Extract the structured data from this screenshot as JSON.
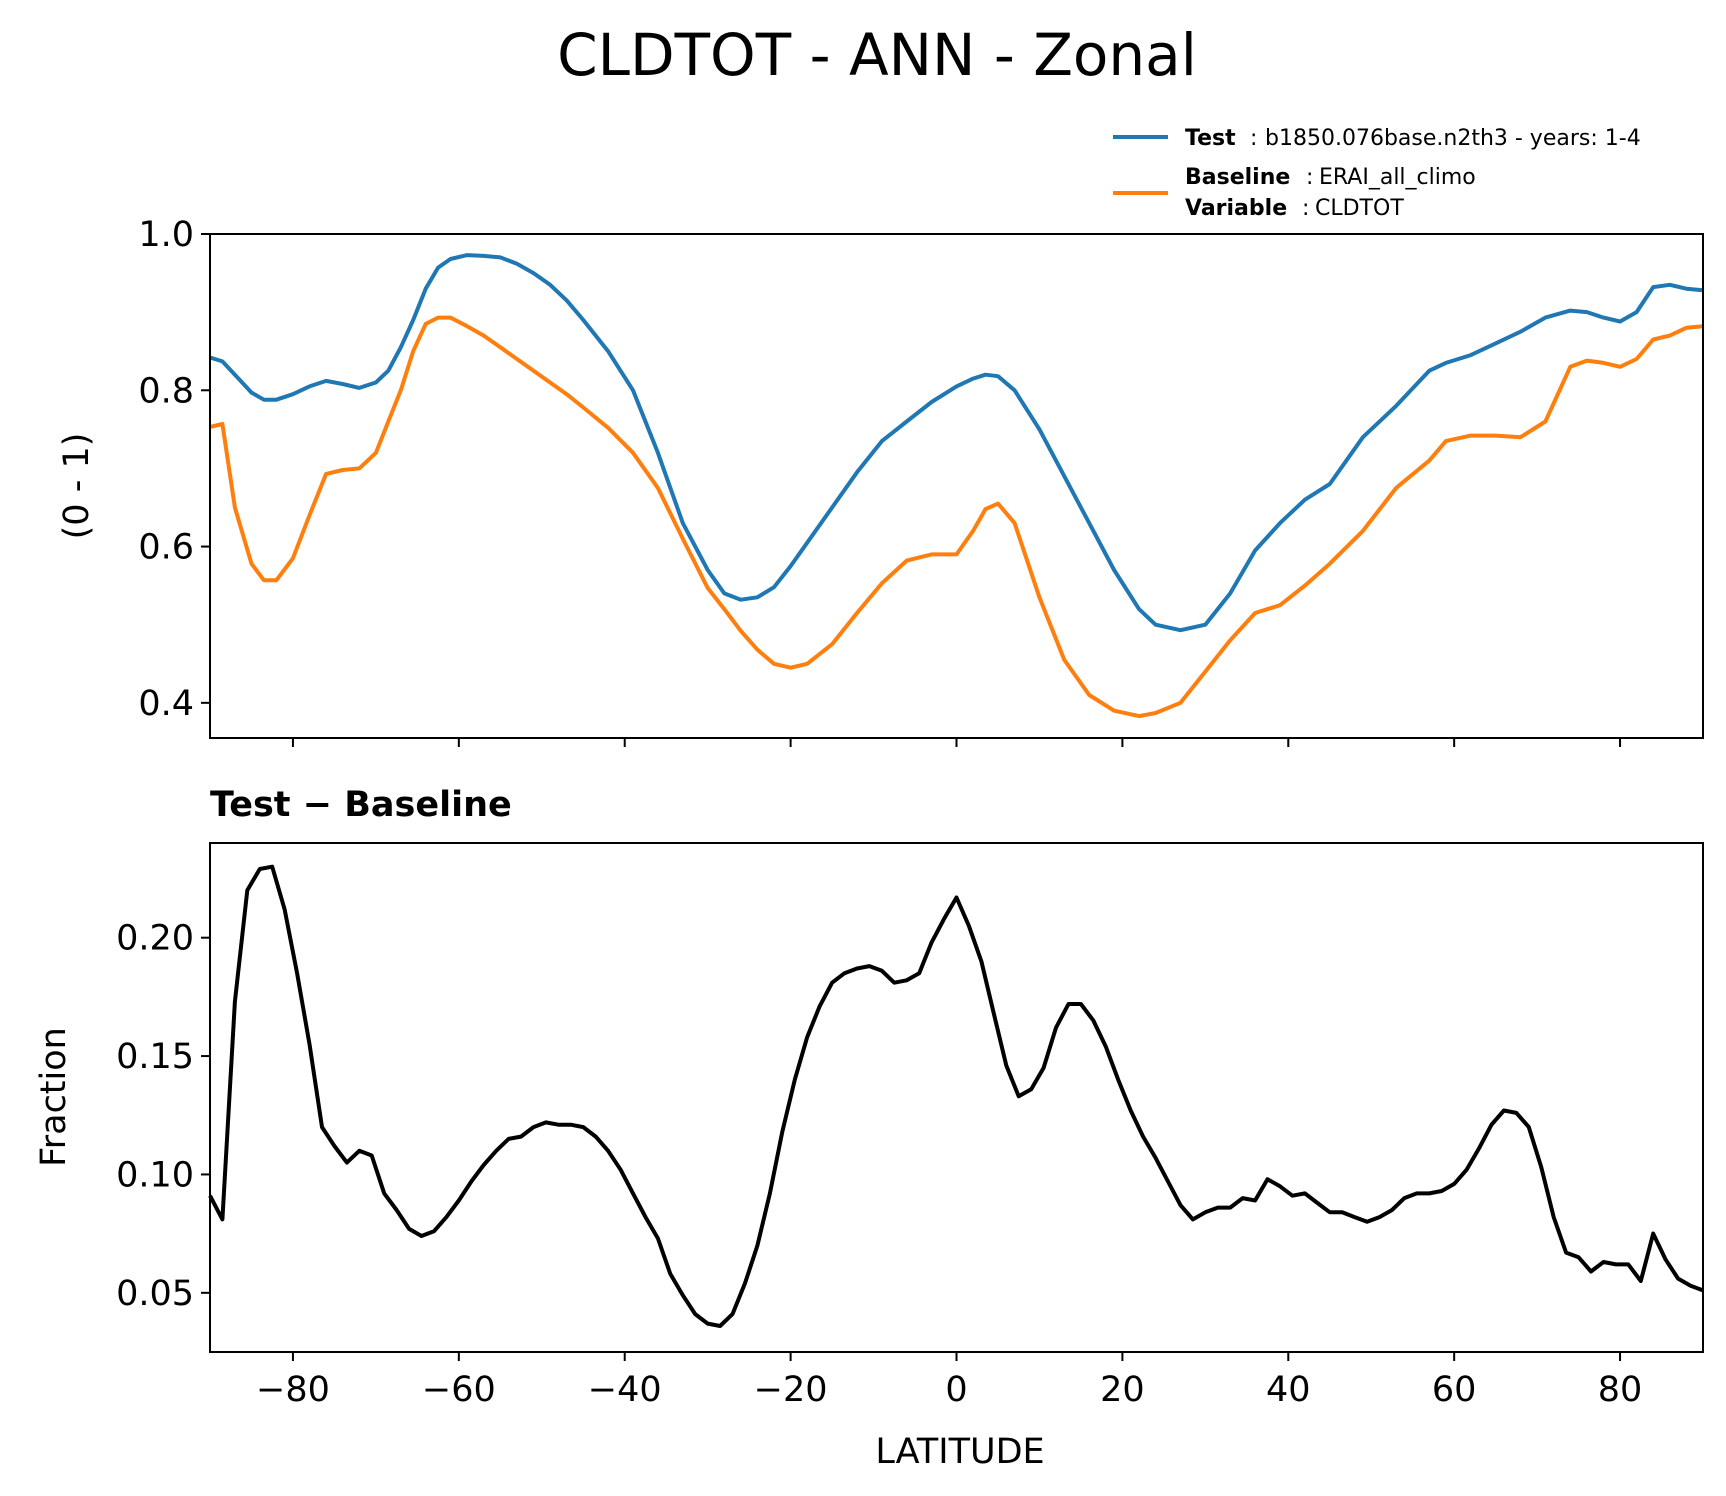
{
  "chart_data": [
    {
      "type": "line",
      "title": "CLDTOT - ANN - Zonal",
      "xlabel": "",
      "ylabel": "(0 - 1)",
      "xlim": [
        -90,
        90
      ],
      "ylim": [
        0.355,
        1.0
      ],
      "yticks": [
        0.4,
        0.6,
        0.8,
        1.0
      ],
      "ytick_labels": [
        "0.4",
        "0.6",
        "0.8",
        "1.0"
      ],
      "xticks": [
        -80,
        -60,
        -40,
        -20,
        0,
        20,
        40,
        60,
        80
      ],
      "grid": false,
      "legend": {
        "placement": "top-right, above plot",
        "entries": [
          {
            "series": 0,
            "lines": [
              {
                "key": "Test",
                "value": "b1850.076base.n2th3 - years: 1-4"
              }
            ]
          },
          {
            "series": 1,
            "lines": [
              {
                "key": "Baseline",
                "value": "ERAI_all_climo"
              },
              {
                "key": "Variable",
                "value": "CLDTOT"
              }
            ]
          }
        ]
      },
      "series": [
        {
          "name": "Test",
          "color": "#1f77b4",
          "x": [
            -90,
            -88.5,
            -87,
            -85,
            -83.5,
            -82,
            -80,
            -78,
            -76,
            -74,
            -72,
            -70,
            -68.5,
            -67,
            -65.5,
            -64,
            -62.5,
            -61,
            -59,
            -57,
            -55,
            -53,
            -51,
            -49,
            -47,
            -45,
            -42,
            -39,
            -36,
            -33,
            -30,
            -28,
            -26,
            -24,
            -22,
            -20,
            -18,
            -15,
            -12,
            -9,
            -6,
            -3,
            0,
            2,
            3.5,
            5,
            7,
            10,
            13,
            16,
            19,
            22,
            24,
            27,
            30,
            33,
            36,
            39,
            42,
            45,
            49,
            53,
            57,
            59,
            62,
            65,
            68,
            71,
            74,
            76,
            78,
            80,
            82,
            84,
            86,
            88,
            90
          ],
          "y": [
            0.842,
            0.837,
            0.82,
            0.797,
            0.788,
            0.788,
            0.795,
            0.805,
            0.812,
            0.808,
            0.803,
            0.81,
            0.825,
            0.855,
            0.89,
            0.93,
            0.957,
            0.968,
            0.973,
            0.972,
            0.97,
            0.962,
            0.95,
            0.935,
            0.915,
            0.89,
            0.85,
            0.8,
            0.72,
            0.63,
            0.57,
            0.54,
            0.532,
            0.535,
            0.548,
            0.575,
            0.605,
            0.65,
            0.695,
            0.735,
            0.76,
            0.785,
            0.805,
            0.815,
            0.82,
            0.818,
            0.8,
            0.75,
            0.69,
            0.63,
            0.57,
            0.52,
            0.5,
            0.493,
            0.5,
            0.54,
            0.595,
            0.63,
            0.66,
            0.68,
            0.74,
            0.78,
            0.825,
            0.835,
            0.845,
            0.86,
            0.875,
            0.893,
            0.902,
            0.9,
            0.893,
            0.888,
            0.9,
            0.932,
            0.935,
            0.93,
            0.928
          ]
        },
        {
          "name": "Baseline",
          "color": "#ff7f0e",
          "x": [
            -90,
            -88.5,
            -87,
            -85,
            -83.5,
            -82,
            -80,
            -78,
            -76,
            -74,
            -72,
            -70,
            -68.5,
            -67,
            -65.5,
            -64,
            -62.5,
            -61,
            -59,
            -57,
            -55,
            -53,
            -51,
            -49,
            -47,
            -45,
            -42,
            -39,
            -36,
            -33,
            -30,
            -28,
            -26,
            -24,
            -22,
            -20,
            -18,
            -15,
            -12,
            -9,
            -6,
            -3,
            0,
            2,
            3.5,
            5,
            7,
            10,
            13,
            16,
            19,
            22,
            24,
            27,
            30,
            33,
            36,
            39,
            42,
            45,
            49,
            53,
            57,
            59,
            62,
            65,
            68,
            71,
            74,
            76,
            78,
            80,
            82,
            84,
            86,
            88,
            90
          ],
          "y": [
            0.753,
            0.757,
            0.65,
            0.578,
            0.557,
            0.557,
            0.585,
            0.64,
            0.693,
            0.698,
            0.7,
            0.72,
            0.76,
            0.8,
            0.85,
            0.885,
            0.893,
            0.893,
            0.882,
            0.87,
            0.855,
            0.84,
            0.825,
            0.81,
            0.795,
            0.778,
            0.752,
            0.72,
            0.675,
            0.61,
            0.547,
            0.52,
            0.492,
            0.468,
            0.45,
            0.445,
            0.45,
            0.475,
            0.515,
            0.553,
            0.582,
            0.59,
            0.59,
            0.62,
            0.648,
            0.655,
            0.63,
            0.535,
            0.455,
            0.41,
            0.39,
            0.383,
            0.387,
            0.4,
            0.44,
            0.48,
            0.515,
            0.525,
            0.55,
            0.578,
            0.62,
            0.675,
            0.71,
            0.735,
            0.742,
            0.742,
            0.74,
            0.76,
            0.83,
            0.838,
            0.835,
            0.83,
            0.84,
            0.865,
            0.87,
            0.88,
            0.882
          ]
        }
      ]
    },
    {
      "type": "line",
      "title": "Test − Baseline",
      "xlabel": "LATITUDE",
      "ylabel": "Fraction",
      "xlim": [
        -90,
        90
      ],
      "ylim": [
        0.025,
        0.24
      ],
      "yticks": [
        0.05,
        0.1,
        0.15,
        0.2
      ],
      "ytick_labels": [
        "0.05",
        "0.10",
        "0.15",
        "0.20"
      ],
      "xticks": [
        -80,
        -60,
        -40,
        -20,
        0,
        20,
        40,
        60,
        80
      ],
      "xtick_labels": [
        "−80",
        "−60",
        "−40",
        "−20",
        "0",
        "20",
        "40",
        "60",
        "80"
      ],
      "grid": false,
      "series": [
        {
          "color": "#000000",
          "x": [
            -90,
            -88.5,
            -87,
            -85.5,
            -84,
            -82.5,
            -81,
            -79.5,
            -78,
            -76.5,
            -75,
            -73.5,
            -72,
            -70.5,
            -69,
            -67.5,
            -66,
            -64.5,
            -63,
            -61.5,
            -60,
            -58.5,
            -57,
            -55.5,
            -54,
            -52.5,
            -51,
            -49.5,
            -48,
            -46.5,
            -45,
            -43.5,
            -42,
            -40.5,
            -39,
            -37.5,
            -36,
            -34.5,
            -33,
            -31.5,
            -30,
            -28.5,
            -27,
            -25.5,
            -24,
            -22.5,
            -21,
            -19.5,
            -18,
            -16.5,
            -15,
            -13.5,
            -12,
            -10.5,
            -9,
            -7.5,
            -6,
            -4.5,
            -3,
            -1.5,
            0,
            1.5,
            3,
            4.5,
            6,
            7.5,
            9,
            10.5,
            12,
            13.5,
            15,
            16.5,
            18,
            19.5,
            21,
            22.5,
            24,
            25.5,
            27,
            28.5,
            30,
            31.5,
            33,
            34.5,
            36,
            37.5,
            39,
            40.5,
            42,
            43.5,
            45,
            46.5,
            48,
            49.5,
            51,
            52.5,
            54,
            55.5,
            57,
            58.5,
            60,
            61.5,
            63,
            64.5,
            66,
            67.5,
            69,
            70.5,
            72,
            73.5,
            75,
            76.5,
            78,
            79.5,
            81,
            82.5,
            84,
            85.5,
            87,
            88.5,
            90
          ],
          "y": [
            0.091,
            0.081,
            0.173,
            0.22,
            0.229,
            0.23,
            0.212,
            0.185,
            0.155,
            0.12,
            0.112,
            0.105,
            0.11,
            0.108,
            0.092,
            0.085,
            0.077,
            0.074,
            0.076,
            0.082,
            0.089,
            0.097,
            0.104,
            0.11,
            0.115,
            0.116,
            0.12,
            0.122,
            0.121,
            0.121,
            0.12,
            0.116,
            0.11,
            0.102,
            0.092,
            0.082,
            0.073,
            0.058,
            0.049,
            0.041,
            0.037,
            0.036,
            0.041,
            0.054,
            0.07,
            0.092,
            0.118,
            0.14,
            0.158,
            0.171,
            0.181,
            0.185,
            0.187,
            0.188,
            0.186,
            0.181,
            0.182,
            0.185,
            0.198,
            0.208,
            0.217,
            0.205,
            0.19,
            0.168,
            0.146,
            0.133,
            0.136,
            0.145,
            0.162,
            0.172,
            0.172,
            0.165,
            0.154,
            0.14,
            0.127,
            0.116,
            0.107,
            0.097,
            0.087,
            0.081,
            0.084,
            0.086,
            0.086,
            0.09,
            0.089,
            0.098,
            0.095,
            0.091,
            0.092,
            0.088,
            0.084,
            0.084,
            0.082,
            0.08,
            0.082,
            0.085,
            0.09,
            0.092,
            0.092,
            0.093,
            0.096,
            0.102,
            0.111,
            0.121,
            0.127,
            0.126,
            0.12,
            0.103,
            0.082,
            0.067,
            0.065,
            0.059,
            0.063,
            0.062,
            0.062,
            0.055,
            0.075,
            0.064,
            0.056,
            0.053,
            0.051
          ]
        }
      ]
    }
  ]
}
